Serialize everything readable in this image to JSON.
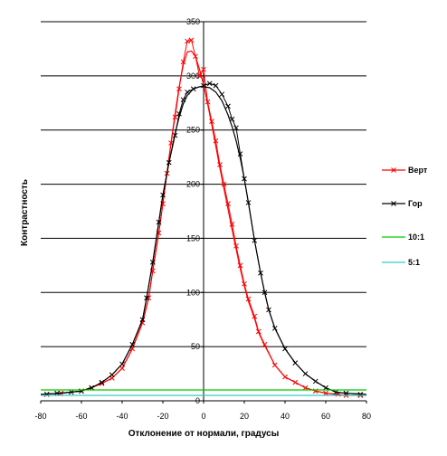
{
  "chart_data": {
    "type": "line",
    "title": "",
    "xlabel": "Отклонение от нормали, градусы",
    "ylabel": "Контрастность",
    "xlim": [
      -80,
      80
    ],
    "ylim": [
      0,
      350
    ],
    "x_ticks": [
      -80,
      -60,
      -40,
      -20,
      0,
      20,
      40,
      60,
      80
    ],
    "y_ticks": [
      0,
      50,
      100,
      150,
      200,
      250,
      300,
      350
    ],
    "grid": "horizontal",
    "legend_position": "right",
    "series": [
      {
        "name": "Верт",
        "color": "#ff0000",
        "marker": "x",
        "markers": [
          [
            -77,
            6
          ],
          [
            -70,
            7
          ],
          [
            -60,
            9
          ],
          [
            -55,
            12
          ],
          [
            -50,
            16
          ],
          [
            -45,
            21
          ],
          [
            -40,
            30
          ],
          [
            -35,
            48
          ],
          [
            -30,
            72
          ],
          [
            -27,
            95
          ],
          [
            -25,
            120
          ],
          [
            -22,
            155
          ],
          [
            -20,
            182
          ],
          [
            -18,
            210
          ],
          [
            -16,
            238
          ],
          [
            -14,
            262
          ],
          [
            -12,
            288
          ],
          [
            -10,
            313
          ],
          [
            -8,
            332
          ],
          [
            -6,
            333
          ],
          [
            -4,
            318
          ],
          [
            -2,
            300
          ],
          [
            0,
            306
          ],
          [
            2,
            276
          ],
          [
            4,
            258
          ],
          [
            6,
            240
          ],
          [
            8,
            218
          ],
          [
            10,
            200
          ],
          [
            12,
            182
          ],
          [
            14,
            163
          ],
          [
            16,
            143
          ],
          [
            18,
            125
          ],
          [
            20,
            108
          ],
          [
            22,
            94
          ],
          [
            25,
            78
          ],
          [
            27,
            64
          ],
          [
            30,
            52
          ],
          [
            35,
            33
          ],
          [
            40,
            22
          ],
          [
            45,
            17
          ],
          [
            50,
            12
          ],
          [
            55,
            9
          ],
          [
            60,
            7
          ],
          [
            66,
            6
          ],
          [
            70,
            5
          ],
          [
            77,
            5
          ]
        ],
        "smooth": [
          [
            -80,
            6
          ],
          [
            -70,
            7
          ],
          [
            -60,
            9
          ],
          [
            -50,
            16
          ],
          [
            -45,
            21
          ],
          [
            -40,
            30
          ],
          [
            -35,
            48
          ],
          [
            -30,
            72
          ],
          [
            -27,
            95
          ],
          [
            -25,
            120
          ],
          [
            -22,
            155
          ],
          [
            -20,
            182
          ],
          [
            -18,
            210
          ],
          [
            -16,
            238
          ],
          [
            -14,
            265
          ],
          [
            -12,
            290
          ],
          [
            -10,
            310
          ],
          [
            -8,
            322
          ],
          [
            -6,
            323
          ],
          [
            -4,
            318
          ],
          [
            -2,
            306
          ],
          [
            0,
            292
          ],
          [
            2,
            274
          ],
          [
            4,
            255
          ],
          [
            6,
            235
          ],
          [
            8,
            215
          ],
          [
            10,
            196
          ],
          [
            12,
            177
          ],
          [
            14,
            158
          ],
          [
            16,
            140
          ],
          [
            18,
            122
          ],
          [
            20,
            106
          ],
          [
            22,
            92
          ],
          [
            25,
            76
          ],
          [
            27,
            63
          ],
          [
            30,
            51
          ],
          [
            35,
            33
          ],
          [
            40,
            22
          ],
          [
            45,
            17
          ],
          [
            50,
            12
          ],
          [
            55,
            9
          ],
          [
            60,
            7
          ],
          [
            70,
            5
          ],
          [
            80,
            5
          ]
        ]
      },
      {
        "name": "Гор",
        "color": "#000000",
        "marker": "x",
        "markers": [
          [
            -77,
            6
          ],
          [
            -72,
            7
          ],
          [
            -65,
            8
          ],
          [
            -60,
            9
          ],
          [
            -55,
            12
          ],
          [
            -50,
            17
          ],
          [
            -45,
            24
          ],
          [
            -40,
            34
          ],
          [
            -35,
            52
          ],
          [
            -30,
            75
          ],
          [
            -28,
            95
          ],
          [
            -25,
            128
          ],
          [
            -22,
            165
          ],
          [
            -20,
            190
          ],
          [
            -17,
            220
          ],
          [
            -14,
            245
          ],
          [
            -12,
            265
          ],
          [
            -10,
            278
          ],
          [
            -8,
            285
          ],
          [
            -5,
            288
          ],
          [
            0,
            291
          ],
          [
            3,
            293
          ],
          [
            6,
            291
          ],
          [
            9,
            283
          ],
          [
            12,
            272
          ],
          [
            14,
            260
          ],
          [
            16,
            252
          ],
          [
            18,
            228
          ],
          [
            20,
            205
          ],
          [
            22,
            183
          ],
          [
            25,
            148
          ],
          [
            28,
            118
          ],
          [
            30,
            100
          ],
          [
            32,
            84
          ],
          [
            35,
            67
          ],
          [
            40,
            48
          ],
          [
            45,
            35
          ],
          [
            50,
            25
          ],
          [
            55,
            18
          ],
          [
            60,
            12
          ],
          [
            65,
            8
          ],
          [
            70,
            7
          ],
          [
            77,
            6
          ]
        ],
        "smooth": [
          [
            -80,
            6
          ],
          [
            -70,
            7
          ],
          [
            -60,
            9
          ],
          [
            -55,
            12
          ],
          [
            -50,
            17
          ],
          [
            -45,
            24
          ],
          [
            -40,
            34
          ],
          [
            -35,
            52
          ],
          [
            -30,
            75
          ],
          [
            -28,
            95
          ],
          [
            -25,
            128
          ],
          [
            -22,
            165
          ],
          [
            -20,
            190
          ],
          [
            -17,
            220
          ],
          [
            -14,
            247
          ],
          [
            -12,
            262
          ],
          [
            -10,
            274
          ],
          [
            -8,
            282
          ],
          [
            -5,
            288
          ],
          [
            -2,
            290
          ],
          [
            0,
            290
          ],
          [
            3,
            289
          ],
          [
            6,
            285
          ],
          [
            9,
            277
          ],
          [
            12,
            264
          ],
          [
            14,
            253
          ],
          [
            16,
            240
          ],
          [
            18,
            224
          ],
          [
            20,
            205
          ],
          [
            22,
            183
          ],
          [
            25,
            148
          ],
          [
            28,
            118
          ],
          [
            30,
            100
          ],
          [
            32,
            84
          ],
          [
            35,
            67
          ],
          [
            40,
            48
          ],
          [
            45,
            35
          ],
          [
            50,
            25
          ],
          [
            55,
            18
          ],
          [
            60,
            12
          ],
          [
            65,
            8
          ],
          [
            70,
            7
          ],
          [
            80,
            6
          ]
        ]
      },
      {
        "name": "10:1",
        "color": "#00cc00",
        "marker": "none",
        "markers": [],
        "smooth": [
          [
            -80,
            10
          ],
          [
            80,
            10
          ]
        ]
      },
      {
        "name": "5:1",
        "color": "#33cccc",
        "marker": "none",
        "markers": [],
        "smooth": [
          [
            -80,
            5
          ],
          [
            80,
            5
          ]
        ]
      }
    ]
  }
}
